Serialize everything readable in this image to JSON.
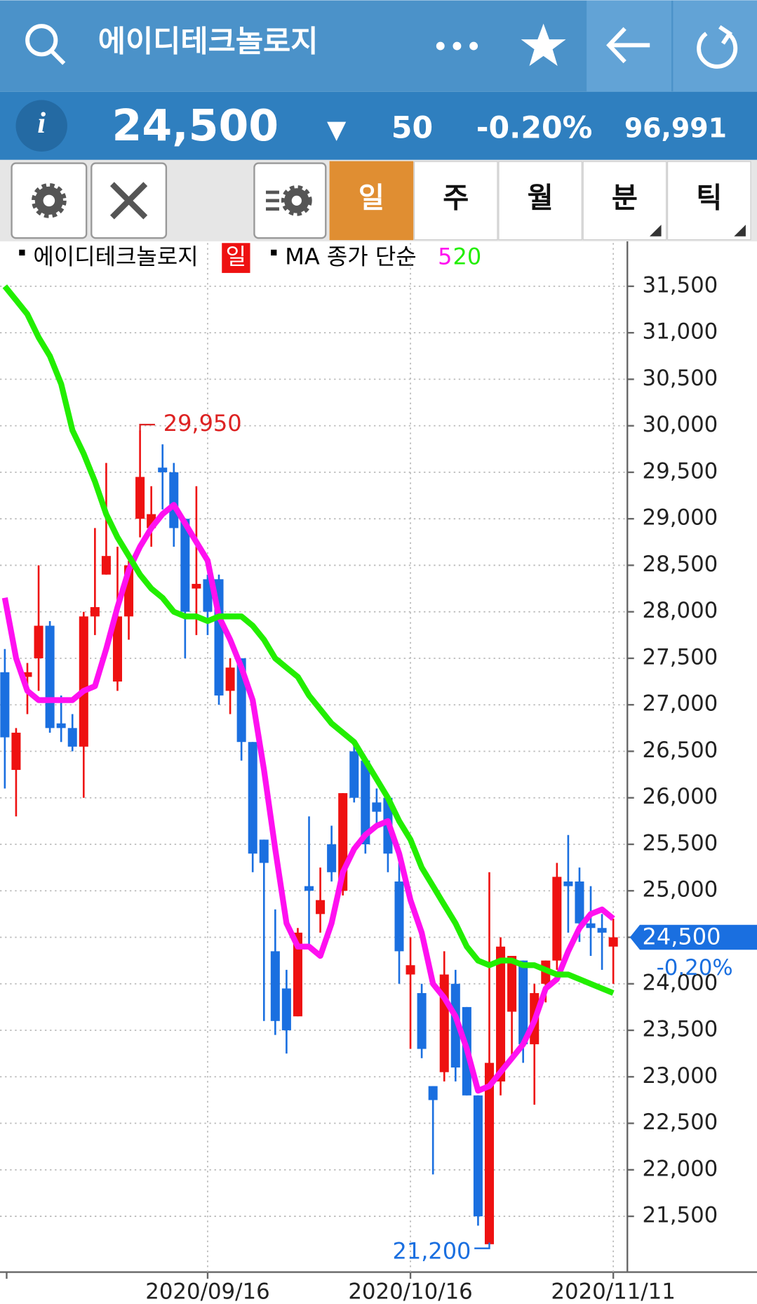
{
  "header": {
    "title": "에이디테크놀로지"
  },
  "quote": {
    "info": "i",
    "price": "24,500",
    "change_arrow": "▼",
    "change": "50",
    "change_pct": "-0.20%",
    "volume": "96,991"
  },
  "toolbar": {
    "tabs": [
      "일",
      "주",
      "월",
      "분",
      "틱"
    ],
    "selected_tab": 0,
    "menu_tabs": [
      3,
      4
    ]
  },
  "chart_data": {
    "type": "candlestick",
    "period": "일",
    "ma_label": "MA 종가 단순",
    "categories": [
      null,
      null,
      null,
      null,
      null,
      null,
      null,
      null,
      null,
      null,
      null,
      null,
      null,
      null,
      null,
      null,
      null,
      null,
      "2020/09/16",
      null,
      null,
      null,
      null,
      null,
      null,
      null,
      null,
      null,
      null,
      null,
      null,
      null,
      null,
      null,
      null,
      null,
      "2020/10/16",
      null,
      null,
      null,
      null,
      null,
      null,
      null,
      null,
      null,
      null,
      null,
      null,
      null,
      null,
      null,
      null,
      null,
      "2020/11/11"
    ],
    "series": [
      {
        "name": "에이디테크놀로지",
        "up_color": "#ee1111",
        "down_color": "#1a6fe0",
        "open": [
          27350,
          26300,
          27300,
          27500,
          27850,
          26800,
          26750,
          26550,
          27950,
          28400,
          27250,
          27950,
          29000,
          28900,
          29550,
          29500,
          29000,
          28250,
          28350,
          28350,
          27150,
          27500,
          26600,
          25550,
          24350,
          23950,
          23650,
          25050,
          24750,
          25500,
          25000,
          26500,
          26400,
          25950,
          26000,
          25100,
          24100,
          23900,
          22900,
          23050,
          24000,
          23750,
          22800,
          21200,
          22950,
          23700,
          24250,
          23350,
          24000,
          24250,
          25100,
          25100,
          24650,
          24600,
          24400
        ],
        "high": [
          27600,
          26750,
          27450,
          28500,
          27900,
          27100,
          26900,
          28000,
          28900,
          29600,
          28700,
          28550,
          29950,
          29350,
          29800,
          29600,
          29000,
          29350,
          28400,
          28400,
          27500,
          27500,
          26600,
          25550,
          24800,
          24150,
          24600,
          25800,
          25250,
          25700,
          26050,
          26600,
          26400,
          26100,
          26000,
          25300,
          24500,
          24000,
          22900,
          24350,
          24150,
          23750,
          22800,
          25200,
          24500,
          24300,
          24250,
          24000,
          24250,
          25300,
          25600,
          25250,
          25050,
          24750,
          24700
        ],
        "low": [
          26100,
          25800,
          26900,
          27150,
          26700,
          26600,
          26500,
          26000,
          27750,
          28400,
          27150,
          27700,
          28800,
          28700,
          29100,
          28700,
          27500,
          27750,
          27750,
          27000,
          26900,
          26400,
          25200,
          23600,
          23450,
          23250,
          23650,
          24400,
          24550,
          25100,
          24950,
          25950,
          25400,
          25700,
          25200,
          24000,
          23300,
          23200,
          21950,
          22950,
          22950,
          22800,
          21400,
          21200,
          22800,
          23200,
          23150,
          22700,
          23800,
          24150,
          24550,
          24450,
          24300,
          24150,
          24000
        ],
        "close": [
          26650,
          26700,
          27350,
          27850,
          26750,
          26750,
          26550,
          27950,
          28050,
          28600,
          27950,
          28500,
          29450,
          29050,
          29500,
          28900,
          28000,
          28300,
          28000,
          27100,
          27400,
          26600,
          25400,
          25300,
          23600,
          23500,
          24550,
          25000,
          24900,
          25200,
          26050,
          26000,
          25500,
          25850,
          25400,
          24350,
          24200,
          23300,
          22750,
          24100,
          23100,
          22800,
          21500,
          23150,
          24400,
          24300,
          23350,
          23900,
          24250,
          25150,
          25050,
          24650,
          24600,
          24550,
          24500
        ]
      },
      {
        "name": "5",
        "color": "#ff10f0",
        "values": [
          28150,
          27500,
          27150,
          27050,
          27050,
          27050,
          27050,
          27150,
          27200,
          27600,
          28050,
          28450,
          28700,
          28900,
          29050,
          29150,
          28950,
          28750,
          28550,
          27950,
          27700,
          27400,
          27050,
          26300,
          25450,
          24650,
          24400,
          24400,
          24300,
          24650,
          25200,
          25450,
          25600,
          25700,
          25750,
          25400,
          24900,
          24550,
          24000,
          23850,
          23650,
          23300,
          22850,
          22900,
          23050,
          23200,
          23350,
          23600,
          23950,
          24050,
          24350,
          24600,
          24750,
          24800,
          24700
        ]
      },
      {
        "name": "20",
        "color": "#22ee00",
        "values": [
          31500,
          31350,
          31200,
          30950,
          30750,
          30450,
          29950,
          29700,
          29400,
          29050,
          28800,
          28600,
          28400,
          28250,
          28150,
          28000,
          27950,
          27950,
          27900,
          27950,
          27950,
          27950,
          27850,
          27700,
          27500,
          27400,
          27300,
          27100,
          26950,
          26800,
          26700,
          26600,
          26400,
          26200,
          26000,
          25750,
          25550,
          25250,
          25050,
          24850,
          24650,
          24400,
          24250,
          24200,
          24250,
          24250,
          24200,
          24200,
          24150,
          24100,
          24100,
          24050,
          24000,
          23950,
          23900
        ]
      }
    ],
    "ylim": [
      20900,
      31965
    ],
    "yticks": [
      {
        "value": 21500,
        "label": "21,500"
      },
      {
        "value": 22000,
        "label": "22,000"
      },
      {
        "value": 22500,
        "label": "22,500"
      },
      {
        "value": 23000,
        "label": "23,000"
      },
      {
        "value": 23500,
        "label": "23,500"
      },
      {
        "value": 24000,
        "label": "24,000"
      },
      {
        "value": 24500,
        "label": "24,500"
      },
      {
        "value": 25000,
        "label": "25,000"
      },
      {
        "value": 25500,
        "label": "25,500"
      },
      {
        "value": 26000,
        "label": "26,000"
      },
      {
        "value": 26500,
        "label": "26,500"
      },
      {
        "value": 27000,
        "label": "27,000"
      },
      {
        "value": 27500,
        "label": "27,500"
      },
      {
        "value": 28000,
        "label": "28,000"
      },
      {
        "value": 28500,
        "label": "28,500"
      },
      {
        "value": 29000,
        "label": "29,000"
      },
      {
        "value": 29500,
        "label": "29,500"
      },
      {
        "value": 30000,
        "label": "30,000"
      },
      {
        "value": 30500,
        "label": "30,500"
      },
      {
        "value": 31000,
        "label": "31,000"
      },
      {
        "value": 31500,
        "label": "31,500"
      }
    ],
    "grid": true,
    "annotations": [
      {
        "value": 29950,
        "label": "29,950",
        "kind": "high",
        "color": "#dd2222"
      },
      {
        "value": 21200,
        "label": "21,200",
        "kind": "low",
        "color": "#1a6fe0"
      }
    ],
    "last_price": {
      "value": 24500,
      "label": "24,500",
      "color": "#1a6fe0"
    }
  }
}
